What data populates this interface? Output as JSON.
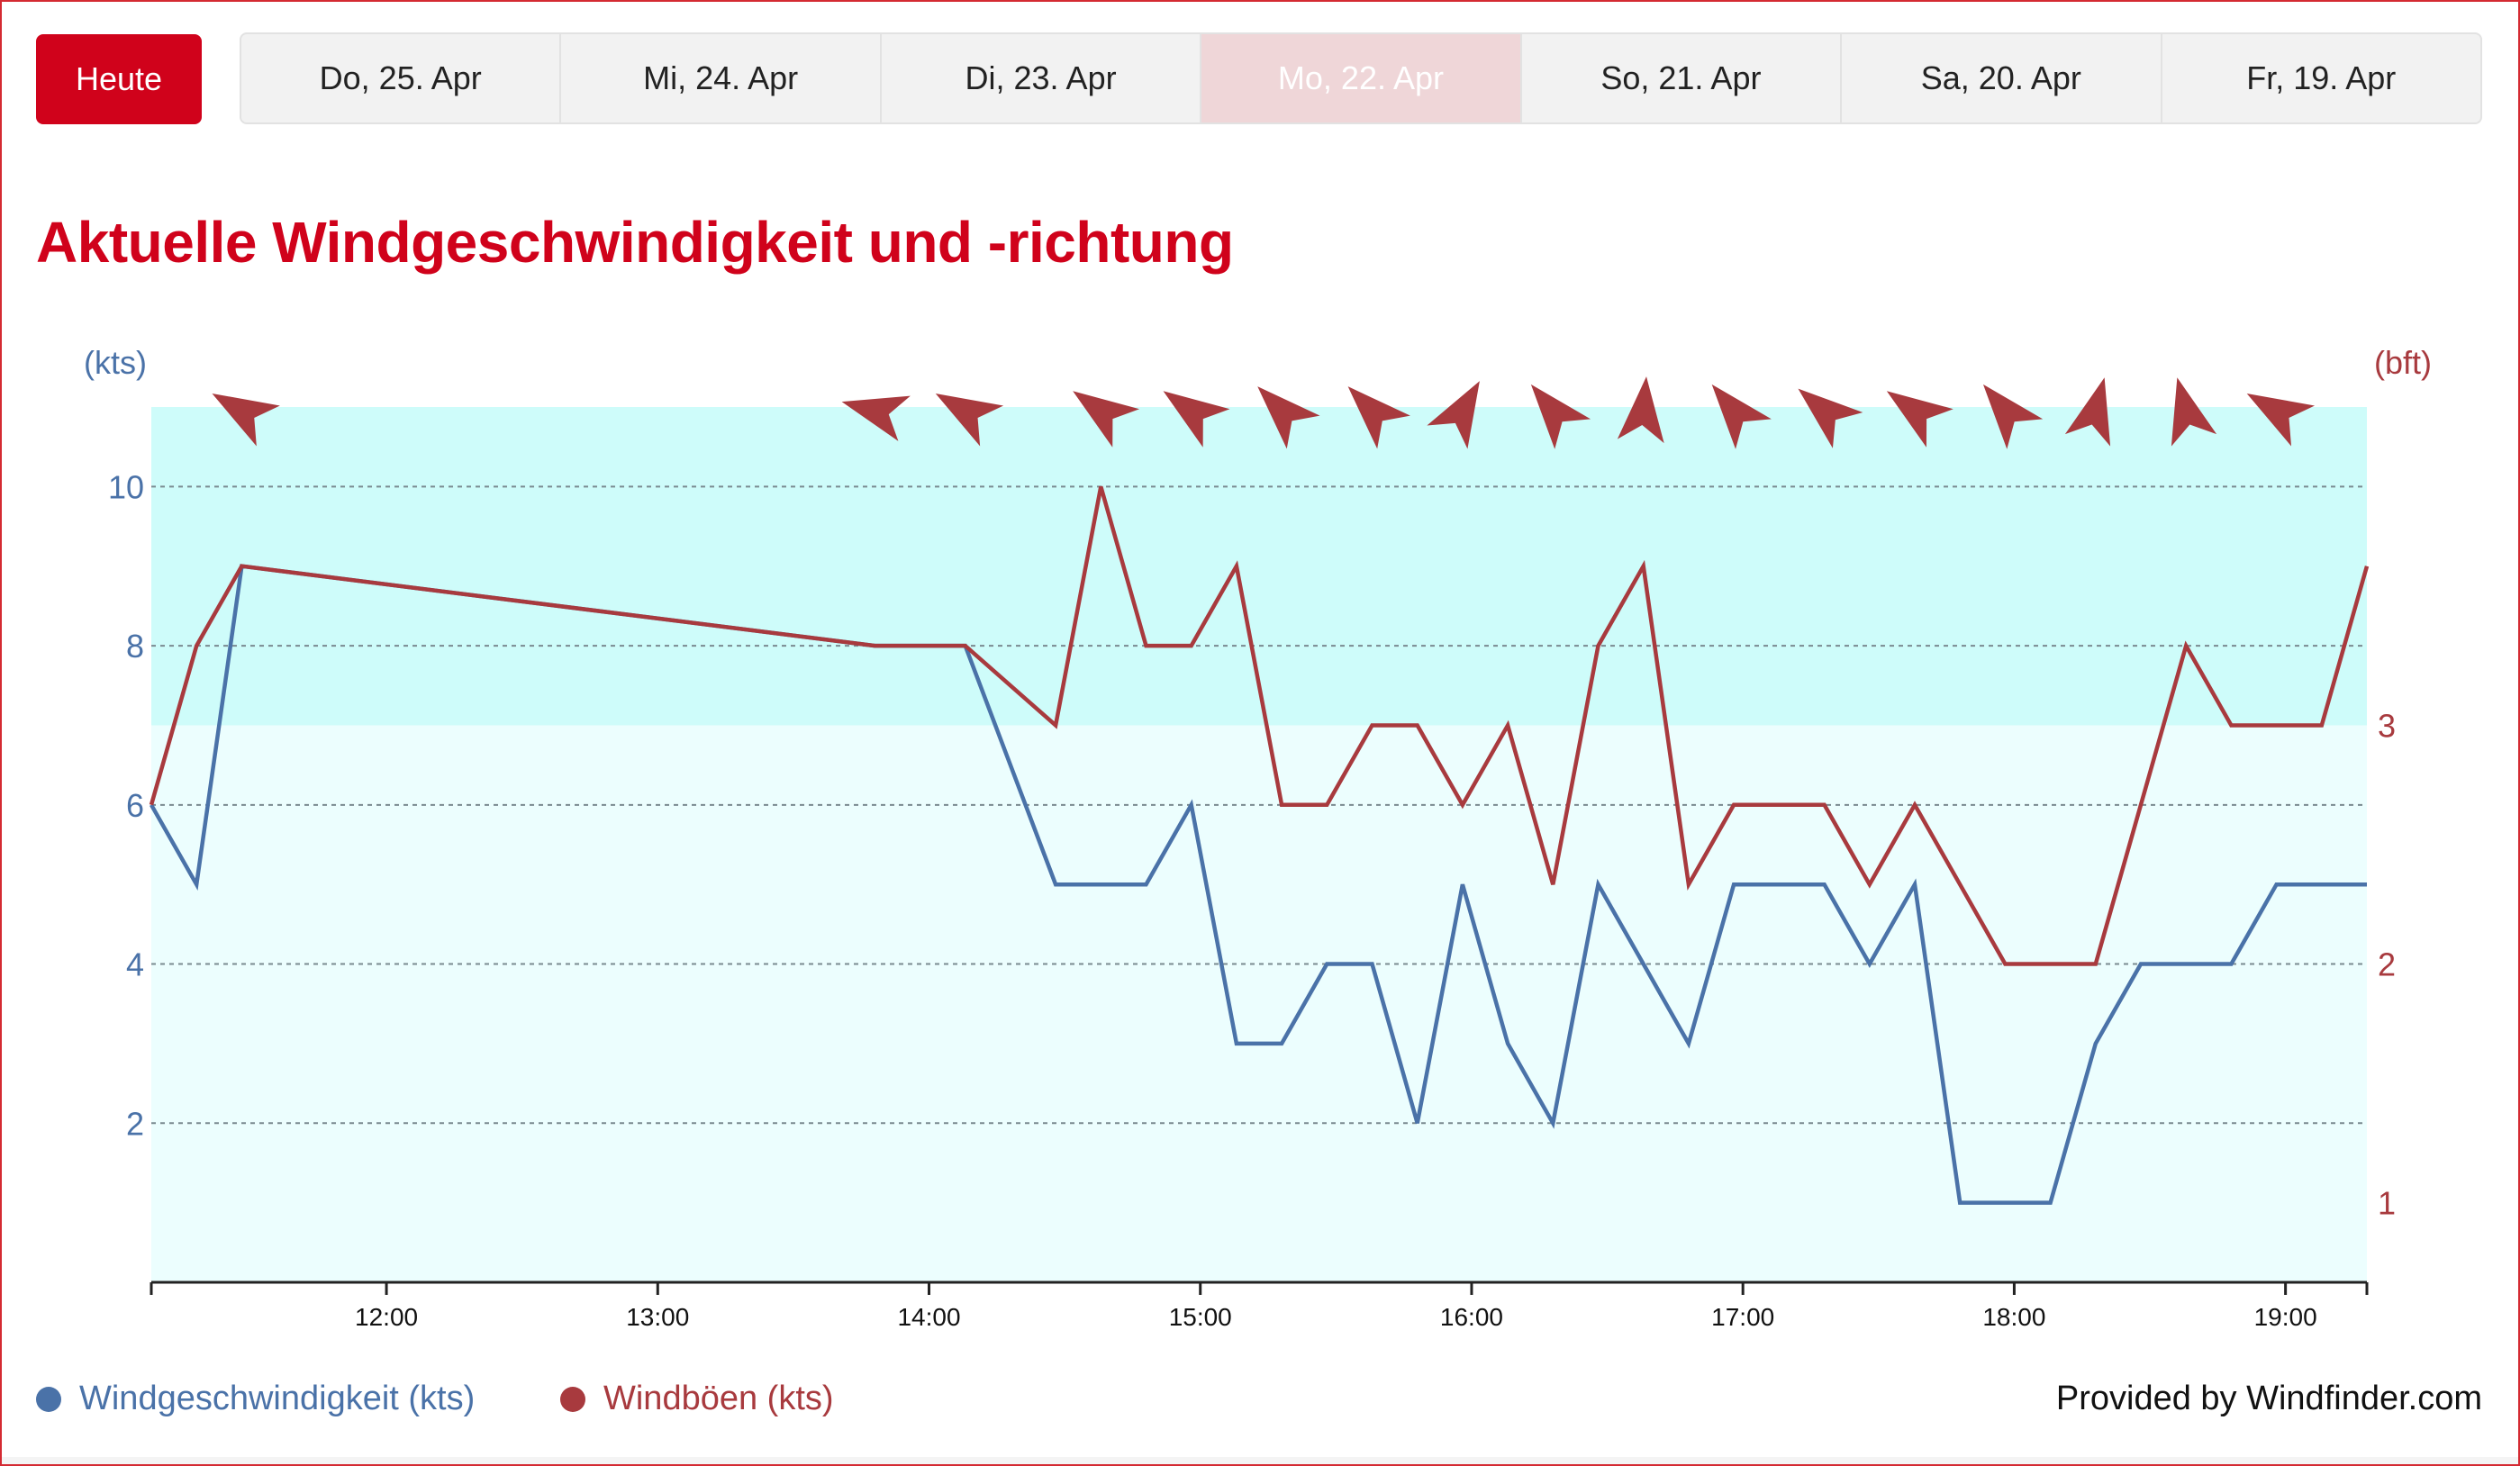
{
  "nav": {
    "today_label": "Heute",
    "tabs": [
      {
        "label": "Do, 25. Apr",
        "disabled": false
      },
      {
        "label": "Mi, 24. Apr",
        "disabled": false
      },
      {
        "label": "Di, 23. Apr",
        "disabled": false
      },
      {
        "label": "Mo, 22. Apr",
        "disabled": true
      },
      {
        "label": "So, 21. Apr",
        "disabled": false
      },
      {
        "label": "Sa, 20. Apr",
        "disabled": false
      },
      {
        "label": "Fr, 19. Apr",
        "disabled": false
      }
    ]
  },
  "title": "Aktuelle Windgeschwindigkeit und -richtung",
  "legend": {
    "speed_label": "Windgeschwindigkeit (kts)",
    "gust_label": "Windböen (kts)"
  },
  "credit": "Provided by Windfinder.com",
  "colors": {
    "brand": "#d0021b",
    "speed": "#4a72a8",
    "gust": "#a83a3e",
    "band_upper": "#cefcfa",
    "band_lower": "#ecfefe"
  },
  "chart_data": {
    "type": "line",
    "left_axis_unit": "(kts)",
    "right_axis_unit": "(bft)",
    "ylim": [
      0,
      11
    ],
    "x_range": [
      "11:08",
      "19:18"
    ],
    "left_ticks": [
      2,
      4,
      6,
      8,
      10
    ],
    "right_ticks": [
      {
        "label": "1",
        "kts": 1
      },
      {
        "label": "2",
        "kts": 4
      },
      {
        "label": "3",
        "kts": 7
      }
    ],
    "bands": [
      {
        "from": 0,
        "to": 7,
        "shade": "lower"
      },
      {
        "from": 7,
        "to": 11,
        "shade": "upper"
      }
    ],
    "x_ticks": [
      "12:00",
      "13:00",
      "14:00",
      "15:00",
      "16:00",
      "17:00",
      "18:00",
      "19:00"
    ],
    "grid": true,
    "legend_position": "bottom-left",
    "x": [
      "11:08",
      "11:18",
      "11:28",
      "13:48",
      "14:08",
      "14:28",
      "14:38",
      "14:48",
      "14:58",
      "15:08",
      "15:18",
      "15:28",
      "15:38",
      "15:48",
      "15:58",
      "16:08",
      "16:18",
      "16:28",
      "16:38",
      "16:48",
      "16:58",
      "17:08",
      "17:18",
      "17:28",
      "17:38",
      "17:48",
      "17:58",
      "18:08",
      "18:18",
      "18:28",
      "18:38",
      "18:48",
      "18:58",
      "19:08",
      "19:18"
    ],
    "series": [
      {
        "name": "Windgeschwindigkeit (kts)",
        "values": [
          6,
          5,
          9,
          8,
          8,
          5,
          5,
          5,
          6,
          3,
          3,
          4,
          4,
          2,
          5,
          3,
          2,
          5,
          4,
          3,
          5,
          5,
          5,
          4,
          5,
          1,
          1,
          1,
          3,
          4,
          4,
          4,
          5,
          5,
          5
        ]
      },
      {
        "name": "Windböen (kts)",
        "values": [
          6,
          8,
          9,
          8,
          8,
          7,
          10,
          8,
          8,
          9,
          6,
          6,
          7,
          7,
          6,
          7,
          5,
          8,
          9,
          5,
          6,
          6,
          6,
          5,
          6,
          5,
          4,
          4,
          4,
          6,
          8,
          7,
          7,
          7,
          9
        ]
      }
    ],
    "direction_arrows": [
      {
        "time": "11:28",
        "deg": 300
      },
      {
        "time": "13:48",
        "deg": 285
      },
      {
        "time": "14:08",
        "deg": 300
      },
      {
        "time": "14:38",
        "deg": 305
      },
      {
        "time": "14:58",
        "deg": 305
      },
      {
        "time": "15:18",
        "deg": 315
      },
      {
        "time": "15:38",
        "deg": 315
      },
      {
        "time": "15:58",
        "deg": 30
      },
      {
        "time": "16:18",
        "deg": 320
      },
      {
        "time": "16:38",
        "deg": 5
      },
      {
        "time": "16:58",
        "deg": 320
      },
      {
        "time": "17:18",
        "deg": 310
      },
      {
        "time": "17:38",
        "deg": 305
      },
      {
        "time": "17:58",
        "deg": 320
      },
      {
        "time": "18:18",
        "deg": 15
      },
      {
        "time": "18:38",
        "deg": 345
      },
      {
        "time": "18:58",
        "deg": 300
      }
    ]
  }
}
